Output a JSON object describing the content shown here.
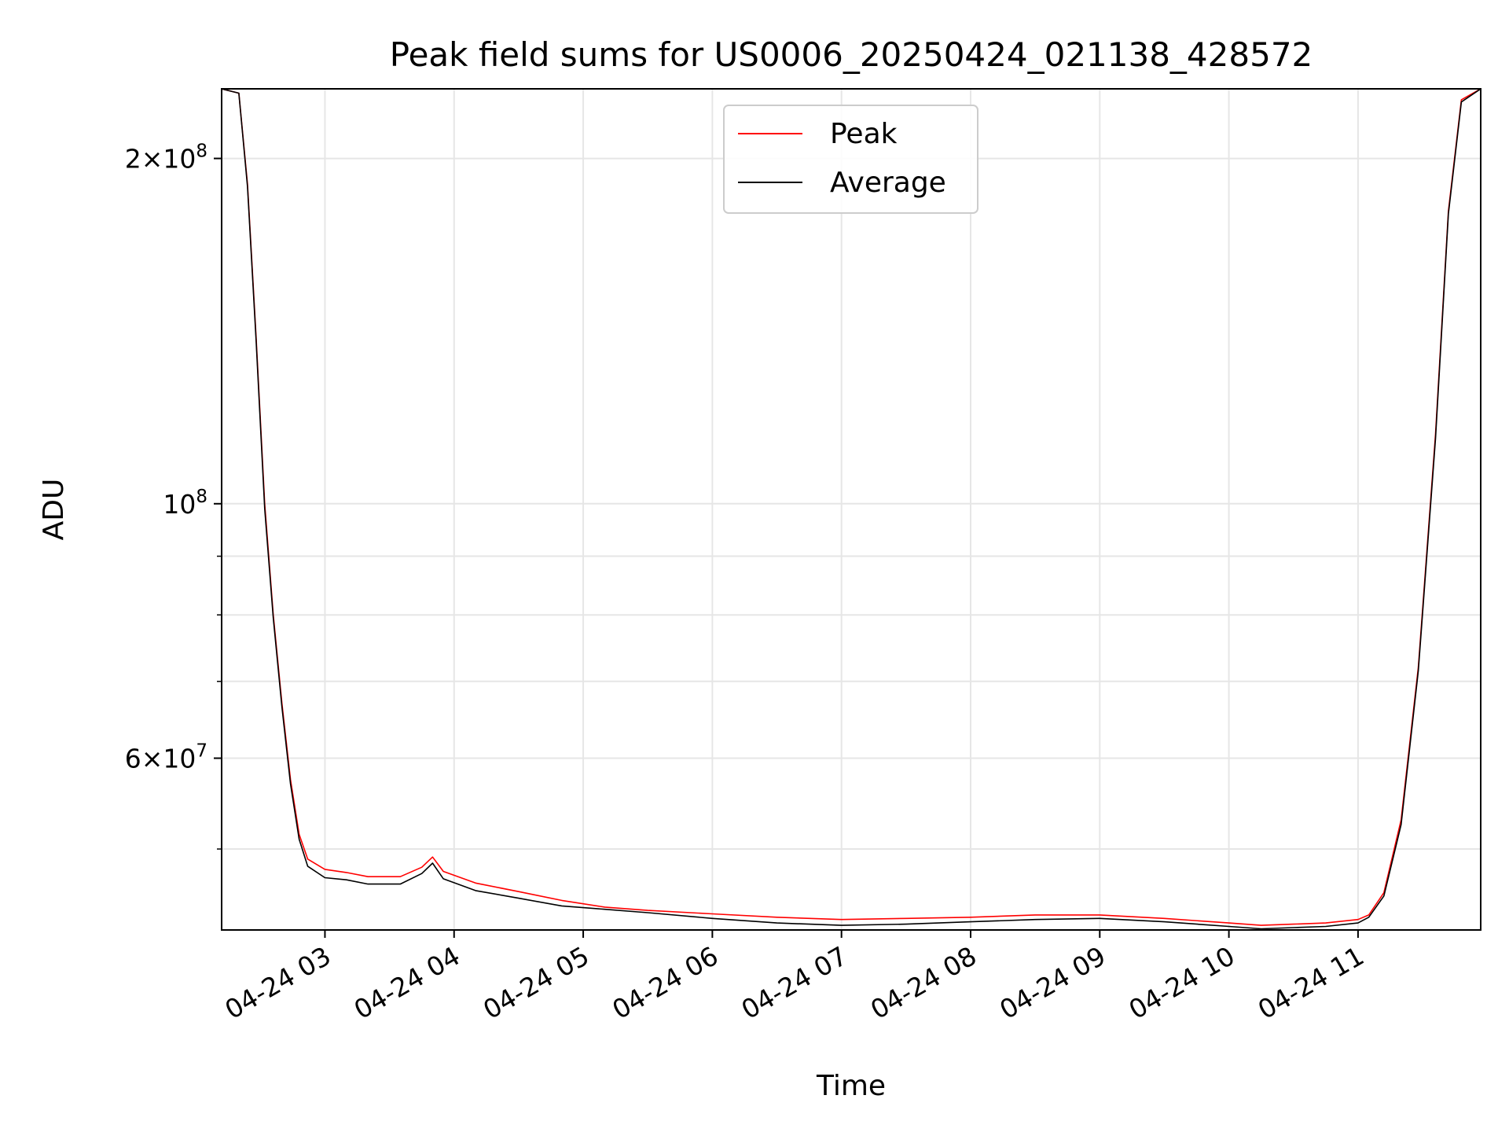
{
  "chart_data": {
    "type": "line",
    "title": "Peak field sums for US0006_20250424_021138_428572",
    "xlabel": "Time",
    "ylabel": "ADU",
    "y_scale": "log",
    "ylim": [
      42500000,
      230000000
    ],
    "xlim": [
      "2025-04-24 02:12",
      "2025-04-24 11:57"
    ],
    "grid": true,
    "legend_position": "top-center",
    "x_tick_labels": [
      "04-24 03",
      "04-24 04",
      "04-24 05",
      "04-24 06",
      "04-24 07",
      "04-24 08",
      "04-24 09",
      "04-24 10",
      "04-24 11"
    ],
    "x_tick_times": [
      "2025-04-24 03:00",
      "2025-04-24 04:00",
      "2025-04-24 05:00",
      "2025-04-24 06:00",
      "2025-04-24 07:00",
      "2025-04-24 08:00",
      "2025-04-24 09:00",
      "2025-04-24 10:00",
      "2025-04-24 11:00"
    ],
    "y_ticks_major": [
      {
        "value": 60000000,
        "mantissa": "6",
        "exponent": "7"
      },
      {
        "value": 100000000,
        "mantissa": "",
        "exponent": "8"
      },
      {
        "value": 200000000,
        "mantissa": "2",
        "exponent": "8"
      }
    ],
    "y_ticks_minor": [
      50000000,
      70000000,
      80000000,
      90000000
    ],
    "series": [
      {
        "name": "Peak",
        "color": "#ff0000",
        "x": [
          "2025-04-24 02:12",
          "2025-04-24 02:20",
          "2025-04-24 02:24",
          "2025-04-24 02:28",
          "2025-04-24 02:32",
          "2025-04-24 02:36",
          "2025-04-24 02:40",
          "2025-04-24 02:44",
          "2025-04-24 02:48",
          "2025-04-24 02:52",
          "2025-04-24 03:00",
          "2025-04-24 03:10",
          "2025-04-24 03:20",
          "2025-04-24 03:35",
          "2025-04-24 03:45",
          "2025-04-24 03:50",
          "2025-04-24 03:55",
          "2025-04-24 04:10",
          "2025-04-24 04:30",
          "2025-04-24 04:50",
          "2025-04-24 05:10",
          "2025-04-24 05:30",
          "2025-04-24 06:00",
          "2025-04-24 06:30",
          "2025-04-24 07:00",
          "2025-04-24 07:30",
          "2025-04-24 08:00",
          "2025-04-24 08:30",
          "2025-04-24 09:00",
          "2025-04-24 09:30",
          "2025-04-24 10:00",
          "2025-04-24 10:15",
          "2025-04-24 10:30",
          "2025-04-24 10:45",
          "2025-04-24 11:00",
          "2025-04-24 11:05",
          "2025-04-24 11:12",
          "2025-04-24 11:20",
          "2025-04-24 11:28",
          "2025-04-24 11:36",
          "2025-04-24 11:42",
          "2025-04-24 11:48",
          "2025-04-24 11:57"
        ],
        "y": [
          230000000,
          228000000,
          190000000,
          140000000,
          100000000,
          80000000,
          67000000,
          57500000,
          51500000,
          49000000,
          48000000,
          47700000,
          47300000,
          47300000,
          48200000,
          49200000,
          47800000,
          46700000,
          45900000,
          45100000,
          44500000,
          44200000,
          43900000,
          43600000,
          43400000,
          43500000,
          43600000,
          43800000,
          43800000,
          43500000,
          43100000,
          42900000,
          43000000,
          43100000,
          43400000,
          43800000,
          45800000,
          53000000,
          72000000,
          115000000,
          180000000,
          225000000,
          230000000
        ]
      },
      {
        "name": "Average",
        "color": "#000000",
        "x": [
          "2025-04-24 02:12",
          "2025-04-24 02:20",
          "2025-04-24 02:24",
          "2025-04-24 02:28",
          "2025-04-24 02:32",
          "2025-04-24 02:36",
          "2025-04-24 02:40",
          "2025-04-24 02:44",
          "2025-04-24 02:48",
          "2025-04-24 02:52",
          "2025-04-24 03:00",
          "2025-04-24 03:10",
          "2025-04-24 03:20",
          "2025-04-24 03:35",
          "2025-04-24 03:45",
          "2025-04-24 03:50",
          "2025-04-24 03:55",
          "2025-04-24 04:10",
          "2025-04-24 04:30",
          "2025-04-24 04:50",
          "2025-04-24 05:10",
          "2025-04-24 05:30",
          "2025-04-24 06:00",
          "2025-04-24 06:30",
          "2025-04-24 07:00",
          "2025-04-24 07:30",
          "2025-04-24 08:00",
          "2025-04-24 08:30",
          "2025-04-24 09:00",
          "2025-04-24 09:30",
          "2025-04-24 10:00",
          "2025-04-24 10:15",
          "2025-04-24 10:30",
          "2025-04-24 10:45",
          "2025-04-24 11:00",
          "2025-04-24 11:05",
          "2025-04-24 11:12",
          "2025-04-24 11:20",
          "2025-04-24 11:28",
          "2025-04-24 11:36",
          "2025-04-24 11:42",
          "2025-04-24 11:48",
          "2025-04-24 11:57"
        ],
        "y": [
          230000000,
          228000000,
          189000000,
          139000000,
          99000000,
          79500000,
          66500000,
          57000000,
          51000000,
          48300000,
          47200000,
          47000000,
          46600000,
          46600000,
          47600000,
          48600000,
          47100000,
          46000000,
          45300000,
          44600000,
          44300000,
          44000000,
          43500000,
          43100000,
          42900000,
          43000000,
          43200000,
          43400000,
          43500000,
          43200000,
          42800000,
          42600000,
          42700000,
          42800000,
          43100000,
          43600000,
          45500000,
          52500000,
          71500000,
          114000000,
          179000000,
          224000000,
          230000000
        ]
      }
    ]
  }
}
